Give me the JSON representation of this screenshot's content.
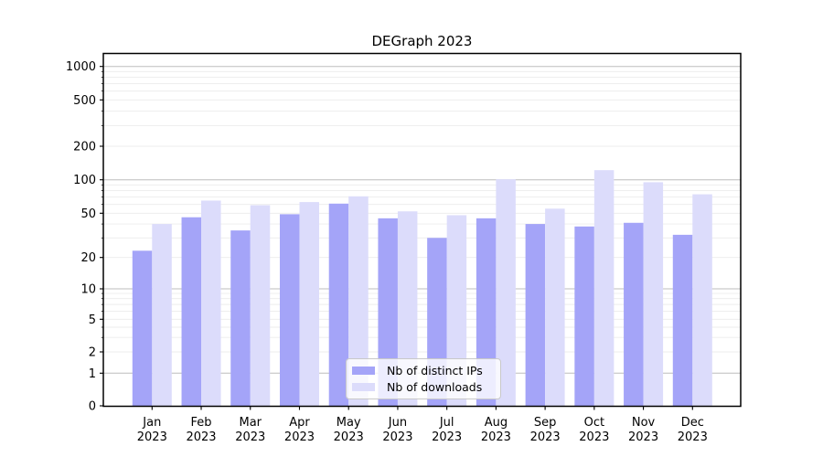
{
  "chart_data": {
    "type": "bar",
    "title": "DEGraph 2023",
    "categories": [
      "Jan",
      "Feb",
      "Mar",
      "Apr",
      "May",
      "Jun",
      "Jul",
      "Aug",
      "Sep",
      "Oct",
      "Nov",
      "Dec"
    ],
    "year": "2023",
    "series": [
      {
        "name": "Nb of distinct IPs",
        "color": "#a4a4f8",
        "values": [
          23,
          46,
          35,
          49,
          61,
          45,
          30,
          45,
          40,
          38,
          41,
          32
        ]
      },
      {
        "name": "Nb of downloads",
        "color": "#dcdcfb",
        "values": [
          40,
          65,
          59,
          63,
          71,
          52,
          48,
          101,
          55,
          122,
          95,
          74
        ]
      }
    ],
    "yscale": "symlog",
    "yticks": [
      0,
      1,
      2,
      5,
      10,
      20,
      50,
      100,
      200,
      500,
      1000
    ],
    "ylim": [
      0,
      1300
    ],
    "xlabel": "",
    "ylabel": "",
    "grid": true,
    "legend_position": "lower center",
    "colors": {
      "major_grid": "#bdbdbd",
      "minor_grid": "#ececec",
      "spine": "#000000",
      "background": "#ffffff"
    }
  }
}
